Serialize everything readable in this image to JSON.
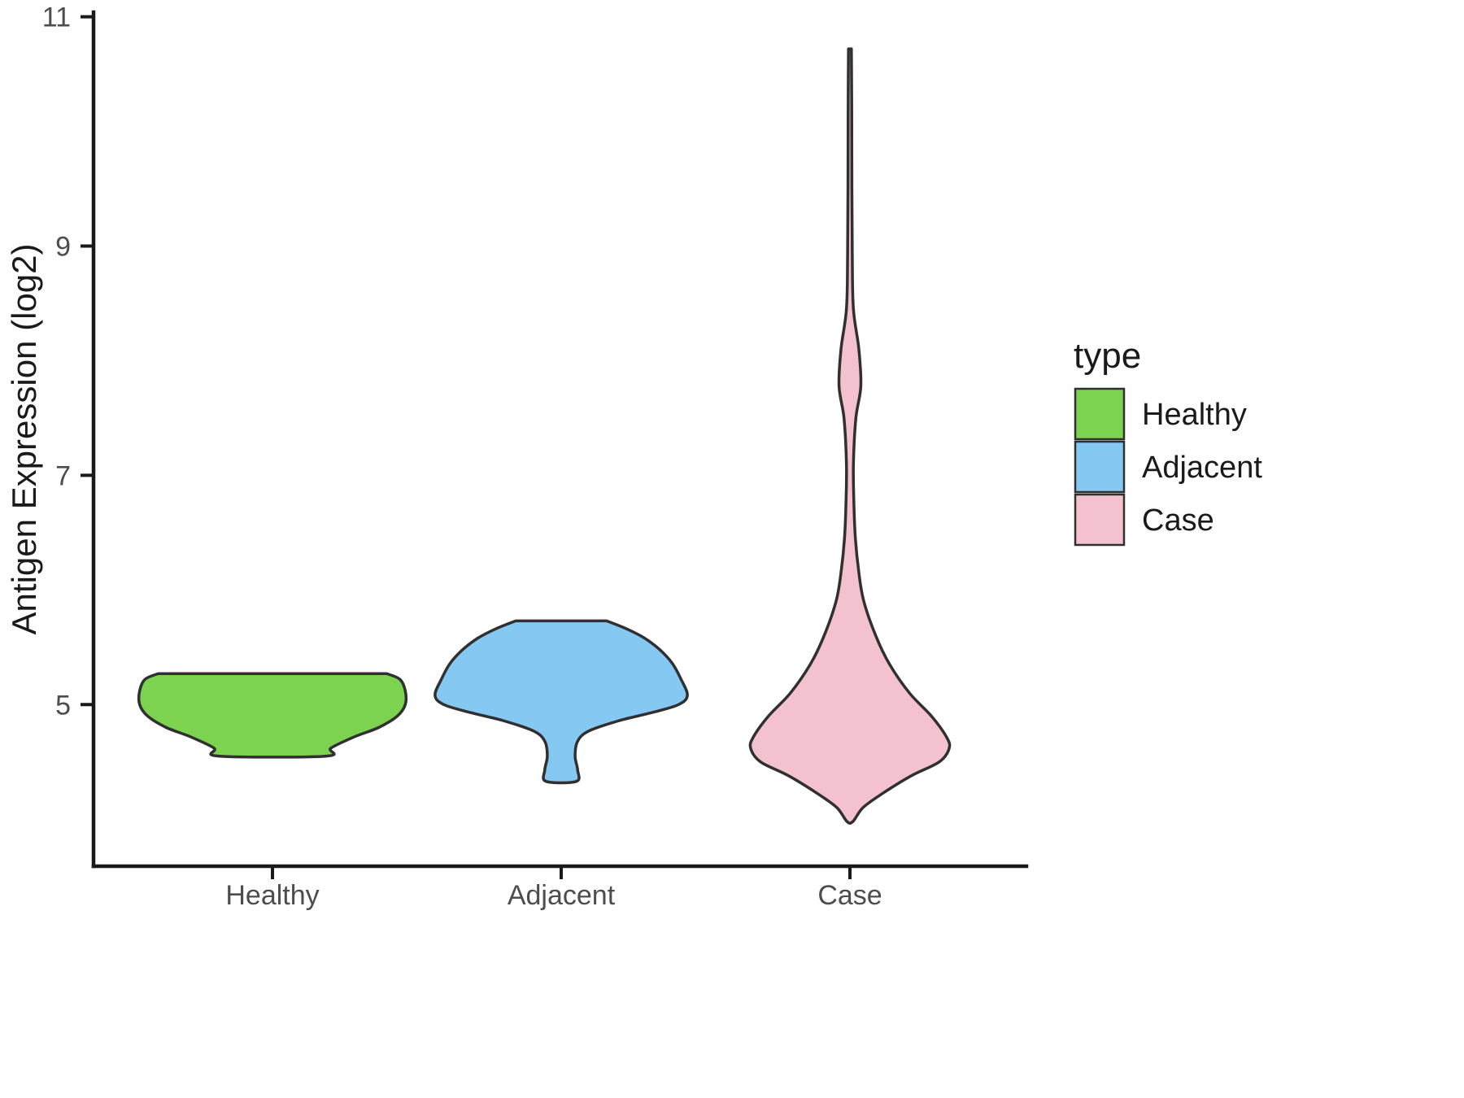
{
  "figure": {
    "background": "#FFFFFF"
  },
  "chart_data": {
    "type": "violin",
    "title": "",
    "xlabel": "",
    "ylabel": "Antigen Expression (log2)",
    "categories": [
      "Healthy",
      "Adjacent",
      "Case"
    ],
    "y_ticks": [
      5,
      7,
      9,
      11
    ],
    "y_tick_labels": [
      "5",
      "7",
      "9",
      "11"
    ],
    "ylim": [
      3.59,
      11.04
    ],
    "grid": false,
    "axis_color": "#1A1A1A",
    "outline_color": "#303030",
    "tick_label_color": "#4D4D4D",
    "title_color": "#1A1A1A",
    "legend": {
      "title": "type",
      "position": "right",
      "entries": [
        {
          "label": "Healthy",
          "color": "#7BD350"
        },
        {
          "label": "Adjacent",
          "color": "#85C9F2"
        },
        {
          "label": "Case",
          "color": "#F4C2CE"
        }
      ]
    },
    "violins": [
      {
        "category": "Healthy",
        "color": "#7BD350",
        "max_halfwidth": 0.46,
        "profile": [
          [
            5.27,
            0.86
          ],
          [
            5.22,
            0.96
          ],
          [
            5.12,
            1.0
          ],
          [
            5.0,
            1.0
          ],
          [
            4.9,
            0.94
          ],
          [
            4.8,
            0.8
          ],
          [
            4.72,
            0.62
          ],
          [
            4.62,
            0.44
          ],
          [
            4.55,
            0.4
          ]
        ]
      },
      {
        "category": "Adjacent",
        "color": "#85C9F2",
        "max_halfwidth": 0.437,
        "profile": [
          [
            5.73,
            0.36
          ],
          [
            5.66,
            0.52
          ],
          [
            5.58,
            0.66
          ],
          [
            5.48,
            0.78
          ],
          [
            5.36,
            0.88
          ],
          [
            5.22,
            0.95
          ],
          [
            5.08,
            1.0
          ],
          [
            5.0,
            0.93
          ],
          [
            4.93,
            0.72
          ],
          [
            4.86,
            0.46
          ],
          [
            4.77,
            0.22
          ],
          [
            4.68,
            0.13
          ],
          [
            4.55,
            0.11
          ],
          [
            4.43,
            0.13
          ],
          [
            4.33,
            0.12
          ]
        ]
      },
      {
        "category": "Case",
        "color": "#F4C2CE",
        "max_halfwidth": 0.344,
        "profile": [
          [
            10.72,
            0.015
          ],
          [
            10.2,
            0.018
          ],
          [
            9.5,
            0.02
          ],
          [
            8.9,
            0.024
          ],
          [
            8.45,
            0.035
          ],
          [
            8.1,
            0.09
          ],
          [
            7.78,
            0.11
          ],
          [
            7.5,
            0.06
          ],
          [
            7.1,
            0.035
          ],
          [
            6.75,
            0.04
          ],
          [
            6.45,
            0.055
          ],
          [
            6.15,
            0.09
          ],
          [
            5.9,
            0.14
          ],
          [
            5.6,
            0.26
          ],
          [
            5.35,
            0.4
          ],
          [
            5.1,
            0.6
          ],
          [
            4.9,
            0.82
          ],
          [
            4.72,
            0.97
          ],
          [
            4.62,
            1.0
          ],
          [
            4.5,
            0.9
          ],
          [
            4.38,
            0.62
          ],
          [
            4.22,
            0.32
          ],
          [
            4.1,
            0.13
          ],
          [
            3.98,
            0.03
          ]
        ]
      }
    ]
  }
}
